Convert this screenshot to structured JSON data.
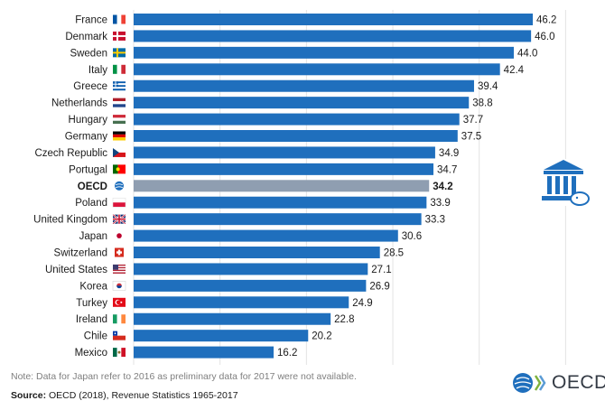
{
  "chart_data": {
    "type": "bar",
    "orientation": "horizontal",
    "categories": [
      "France",
      "Denmark",
      "Sweden",
      "Italy",
      "Greece",
      "Netherlands",
      "Hungary",
      "Germany",
      "Czech Republic",
      "Portugal",
      "OECD",
      "Poland",
      "United Kingdom",
      "Japan",
      "Switzerland",
      "United States",
      "Korea",
      "Turkey",
      "Ireland",
      "Chile",
      "Mexico"
    ],
    "values": [
      46.2,
      46.0,
      44.0,
      42.4,
      39.4,
      38.8,
      37.7,
      37.5,
      34.9,
      34.7,
      34.2,
      33.9,
      33.3,
      30.6,
      28.5,
      27.1,
      26.9,
      24.9,
      22.8,
      20.2,
      16.2
    ],
    "value_labels": [
      "46.2",
      "46.0",
      "44.0",
      "42.4",
      "39.4",
      "38.8",
      "37.7",
      "37.5",
      "34.9",
      "34.7",
      "34.2",
      "33.9",
      "33.3",
      "30.6",
      "28.5",
      "27.1",
      "26.9",
      "24.9",
      "22.8",
      "20.2",
      "16.2"
    ],
    "highlight": "OECD",
    "xlim": [
      0,
      50
    ],
    "grid": true,
    "bar_color": "#1f6fbd",
    "highlight_color": "#8f9eb1"
  },
  "flag_icons": [
    "france-flag-icon",
    "denmark-flag-icon",
    "sweden-flag-icon",
    "italy-flag-icon",
    "greece-flag-icon",
    "netherlands-flag-icon",
    "hungary-flag-icon",
    "germany-flag-icon",
    "czech-republic-flag-icon",
    "portugal-flag-icon",
    "oecd-globe-icon",
    "poland-flag-icon",
    "united-kingdom-flag-icon",
    "japan-flag-icon",
    "switzerland-flag-icon",
    "united-states-flag-icon",
    "korea-flag-icon",
    "turkey-flag-icon",
    "ireland-flag-icon",
    "chile-flag-icon",
    "mexico-flag-icon"
  ],
  "decor_icon": "bank-piggy-icon",
  "footer": {
    "note": "Note: Data for Japan refer to 2016 as preliminary data for 2017 were not available.",
    "source_prefix": "Source:",
    "source_text": " OECD (2018), Revenue Statistics 1965-2017"
  },
  "logo": {
    "text": "OECD",
    "icon": "oecd-globe-logo-icon"
  }
}
